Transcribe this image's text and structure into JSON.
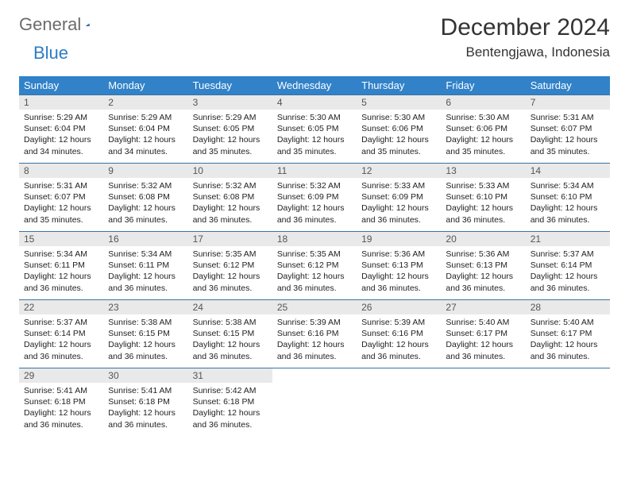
{
  "brand": {
    "word1": "General",
    "word2": "Blue"
  },
  "title": "December 2024",
  "location": "Bentengjawa, Indonesia",
  "colors": {
    "header_bg": "#3182c8",
    "header_text": "#ffffff",
    "daynum_bg": "#e9e9e9",
    "cell_border": "#3b73a3",
    "brand_gray": "#6b6b6b",
    "brand_blue": "#2d7dc5"
  },
  "weekdays": [
    "Sunday",
    "Monday",
    "Tuesday",
    "Wednesday",
    "Thursday",
    "Friday",
    "Saturday"
  ],
  "weeks": [
    [
      {
        "n": "1",
        "sr": "Sunrise: 5:29 AM",
        "ss": "Sunset: 6:04 PM",
        "d1": "Daylight: 12 hours",
        "d2": "and 34 minutes."
      },
      {
        "n": "2",
        "sr": "Sunrise: 5:29 AM",
        "ss": "Sunset: 6:04 PM",
        "d1": "Daylight: 12 hours",
        "d2": "and 34 minutes."
      },
      {
        "n": "3",
        "sr": "Sunrise: 5:29 AM",
        "ss": "Sunset: 6:05 PM",
        "d1": "Daylight: 12 hours",
        "d2": "and 35 minutes."
      },
      {
        "n": "4",
        "sr": "Sunrise: 5:30 AM",
        "ss": "Sunset: 6:05 PM",
        "d1": "Daylight: 12 hours",
        "d2": "and 35 minutes."
      },
      {
        "n": "5",
        "sr": "Sunrise: 5:30 AM",
        "ss": "Sunset: 6:06 PM",
        "d1": "Daylight: 12 hours",
        "d2": "and 35 minutes."
      },
      {
        "n": "6",
        "sr": "Sunrise: 5:30 AM",
        "ss": "Sunset: 6:06 PM",
        "d1": "Daylight: 12 hours",
        "d2": "and 35 minutes."
      },
      {
        "n": "7",
        "sr": "Sunrise: 5:31 AM",
        "ss": "Sunset: 6:07 PM",
        "d1": "Daylight: 12 hours",
        "d2": "and 35 minutes."
      }
    ],
    [
      {
        "n": "8",
        "sr": "Sunrise: 5:31 AM",
        "ss": "Sunset: 6:07 PM",
        "d1": "Daylight: 12 hours",
        "d2": "and 35 minutes."
      },
      {
        "n": "9",
        "sr": "Sunrise: 5:32 AM",
        "ss": "Sunset: 6:08 PM",
        "d1": "Daylight: 12 hours",
        "d2": "and 36 minutes."
      },
      {
        "n": "10",
        "sr": "Sunrise: 5:32 AM",
        "ss": "Sunset: 6:08 PM",
        "d1": "Daylight: 12 hours",
        "d2": "and 36 minutes."
      },
      {
        "n": "11",
        "sr": "Sunrise: 5:32 AM",
        "ss": "Sunset: 6:09 PM",
        "d1": "Daylight: 12 hours",
        "d2": "and 36 minutes."
      },
      {
        "n": "12",
        "sr": "Sunrise: 5:33 AM",
        "ss": "Sunset: 6:09 PM",
        "d1": "Daylight: 12 hours",
        "d2": "and 36 minutes."
      },
      {
        "n": "13",
        "sr": "Sunrise: 5:33 AM",
        "ss": "Sunset: 6:10 PM",
        "d1": "Daylight: 12 hours",
        "d2": "and 36 minutes."
      },
      {
        "n": "14",
        "sr": "Sunrise: 5:34 AM",
        "ss": "Sunset: 6:10 PM",
        "d1": "Daylight: 12 hours",
        "d2": "and 36 minutes."
      }
    ],
    [
      {
        "n": "15",
        "sr": "Sunrise: 5:34 AM",
        "ss": "Sunset: 6:11 PM",
        "d1": "Daylight: 12 hours",
        "d2": "and 36 minutes."
      },
      {
        "n": "16",
        "sr": "Sunrise: 5:34 AM",
        "ss": "Sunset: 6:11 PM",
        "d1": "Daylight: 12 hours",
        "d2": "and 36 minutes."
      },
      {
        "n": "17",
        "sr": "Sunrise: 5:35 AM",
        "ss": "Sunset: 6:12 PM",
        "d1": "Daylight: 12 hours",
        "d2": "and 36 minutes."
      },
      {
        "n": "18",
        "sr": "Sunrise: 5:35 AM",
        "ss": "Sunset: 6:12 PM",
        "d1": "Daylight: 12 hours",
        "d2": "and 36 minutes."
      },
      {
        "n": "19",
        "sr": "Sunrise: 5:36 AM",
        "ss": "Sunset: 6:13 PM",
        "d1": "Daylight: 12 hours",
        "d2": "and 36 minutes."
      },
      {
        "n": "20",
        "sr": "Sunrise: 5:36 AM",
        "ss": "Sunset: 6:13 PM",
        "d1": "Daylight: 12 hours",
        "d2": "and 36 minutes."
      },
      {
        "n": "21",
        "sr": "Sunrise: 5:37 AM",
        "ss": "Sunset: 6:14 PM",
        "d1": "Daylight: 12 hours",
        "d2": "and 36 minutes."
      }
    ],
    [
      {
        "n": "22",
        "sr": "Sunrise: 5:37 AM",
        "ss": "Sunset: 6:14 PM",
        "d1": "Daylight: 12 hours",
        "d2": "and 36 minutes."
      },
      {
        "n": "23",
        "sr": "Sunrise: 5:38 AM",
        "ss": "Sunset: 6:15 PM",
        "d1": "Daylight: 12 hours",
        "d2": "and 36 minutes."
      },
      {
        "n": "24",
        "sr": "Sunrise: 5:38 AM",
        "ss": "Sunset: 6:15 PM",
        "d1": "Daylight: 12 hours",
        "d2": "and 36 minutes."
      },
      {
        "n": "25",
        "sr": "Sunrise: 5:39 AM",
        "ss": "Sunset: 6:16 PM",
        "d1": "Daylight: 12 hours",
        "d2": "and 36 minutes."
      },
      {
        "n": "26",
        "sr": "Sunrise: 5:39 AM",
        "ss": "Sunset: 6:16 PM",
        "d1": "Daylight: 12 hours",
        "d2": "and 36 minutes."
      },
      {
        "n": "27",
        "sr": "Sunrise: 5:40 AM",
        "ss": "Sunset: 6:17 PM",
        "d1": "Daylight: 12 hours",
        "d2": "and 36 minutes."
      },
      {
        "n": "28",
        "sr": "Sunrise: 5:40 AM",
        "ss": "Sunset: 6:17 PM",
        "d1": "Daylight: 12 hours",
        "d2": "and 36 minutes."
      }
    ],
    [
      {
        "n": "29",
        "sr": "Sunrise: 5:41 AM",
        "ss": "Sunset: 6:18 PM",
        "d1": "Daylight: 12 hours",
        "d2": "and 36 minutes."
      },
      {
        "n": "30",
        "sr": "Sunrise: 5:41 AM",
        "ss": "Sunset: 6:18 PM",
        "d1": "Daylight: 12 hours",
        "d2": "and 36 minutes."
      },
      {
        "n": "31",
        "sr": "Sunrise: 5:42 AM",
        "ss": "Sunset: 6:18 PM",
        "d1": "Daylight: 12 hours",
        "d2": "and 36 minutes."
      },
      {
        "empty": true,
        "n": "",
        "sr": "",
        "ss": "",
        "d1": "",
        "d2": ""
      },
      {
        "empty": true,
        "n": "",
        "sr": "",
        "ss": "",
        "d1": "",
        "d2": ""
      },
      {
        "empty": true,
        "n": "",
        "sr": "",
        "ss": "",
        "d1": "",
        "d2": ""
      },
      {
        "empty": true,
        "n": "",
        "sr": "",
        "ss": "",
        "d1": "",
        "d2": ""
      }
    ]
  ]
}
